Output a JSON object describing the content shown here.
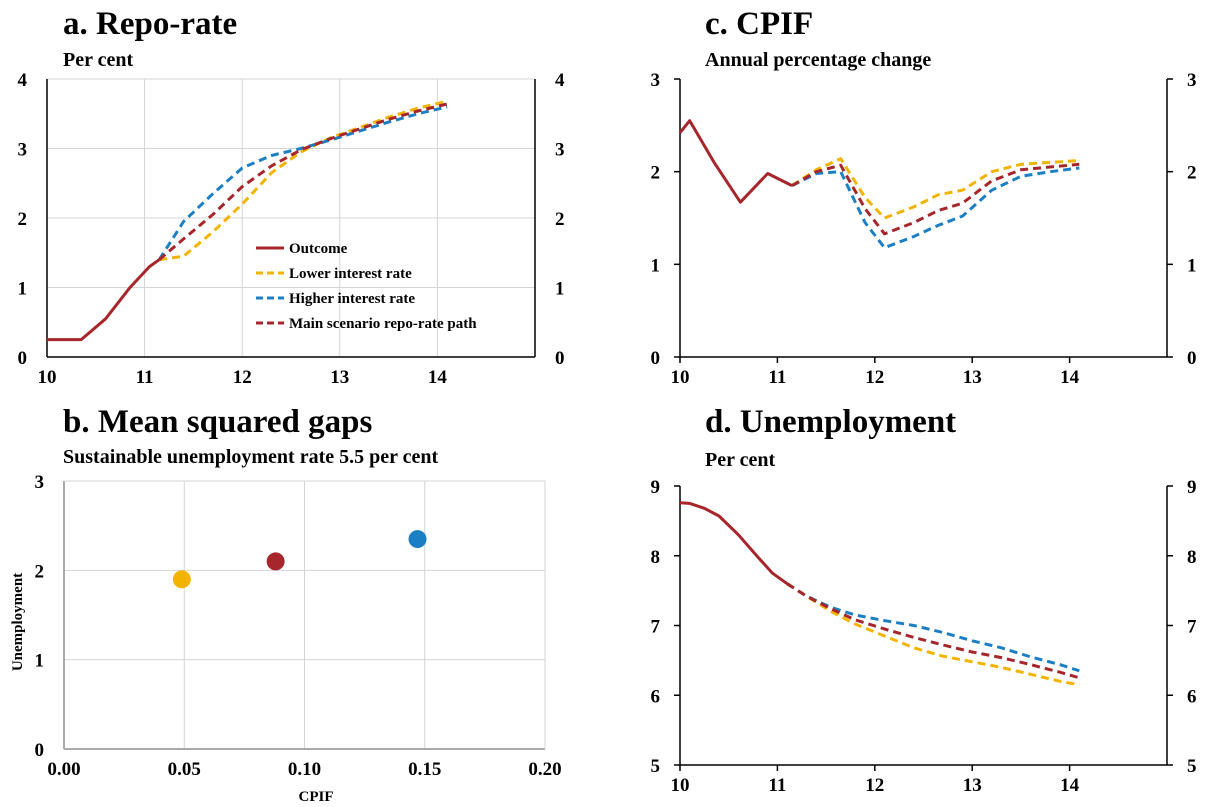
{
  "colors": {
    "outcome": "#a6262c",
    "lower": "#f2b400",
    "higher": "#1c7fc4",
    "main": "#a6262c",
    "grid": "#d4d4d4",
    "axis": "#000000"
  },
  "chart_data": [
    {
      "type": "line",
      "title": "a. Repo-rate",
      "subtitle": "Per cent",
      "xlim": [
        10,
        15
      ],
      "ylim": [
        0,
        4
      ],
      "xticks": [
        "10",
        "11",
        "12",
        "13",
        "14"
      ],
      "yticks": [
        "0",
        "1",
        "2",
        "3",
        "4"
      ],
      "grid": true,
      "series": [
        {
          "name": "Outcome",
          "key": "outcome",
          "dashed": false,
          "x": [
            10,
            10.35,
            10.6,
            10.85,
            11.05,
            11.15
          ],
          "y": [
            0.25,
            0.25,
            0.55,
            1.0,
            1.3,
            1.4
          ]
        },
        {
          "name": "Lower interest rate",
          "key": "lower",
          "dashed": true,
          "x": [
            11.15,
            11.4,
            11.7,
            12.0,
            12.3,
            12.6,
            12.9,
            13.2,
            13.5,
            13.8,
            14.1
          ],
          "y": [
            1.4,
            1.45,
            1.8,
            2.2,
            2.65,
            2.95,
            3.15,
            3.3,
            3.45,
            3.58,
            3.68
          ]
        },
        {
          "name": "Higher interest rate",
          "key": "higher",
          "dashed": true,
          "x": [
            11.15,
            11.4,
            11.7,
            12.0,
            12.3,
            12.6,
            12.9,
            13.2,
            13.5,
            13.8,
            14.1
          ],
          "y": [
            1.4,
            1.95,
            2.35,
            2.72,
            2.9,
            3.0,
            3.12,
            3.25,
            3.38,
            3.5,
            3.6
          ]
        },
        {
          "name": "Main scenario repo-rate path",
          "key": "main",
          "dashed": true,
          "x": [
            11.15,
            11.4,
            11.7,
            12.0,
            12.3,
            12.6,
            12.9,
            13.2,
            13.5,
            13.8,
            14.1
          ],
          "y": [
            1.4,
            1.7,
            2.05,
            2.45,
            2.75,
            2.98,
            3.14,
            3.28,
            3.42,
            3.54,
            3.64
          ]
        }
      ],
      "legend_placement": "center-right"
    },
    {
      "type": "scatter",
      "title": "b. Mean squared gaps",
      "subtitle": "Sustainable unemployment rate 5.5 per cent",
      "xlabel": "CPIF",
      "ylabel": "Unemployment",
      "xlim": [
        0,
        0.2
      ],
      "ylim": [
        0,
        3
      ],
      "xticks": [
        "0.00",
        "0.05",
        "0.10",
        "0.15",
        "0.20"
      ],
      "yticks": [
        "0",
        "1",
        "2",
        "3"
      ],
      "grid": true,
      "points": [
        {
          "x": 0.049,
          "y": 1.9,
          "key": "lower"
        },
        {
          "x": 0.088,
          "y": 2.1,
          "key": "main"
        },
        {
          "x": 0.147,
          "y": 2.35,
          "key": "higher"
        }
      ]
    },
    {
      "type": "line",
      "title": "c. CPIF",
      "subtitle": "Annual percentage change",
      "xlim": [
        10,
        15
      ],
      "ylim": [
        0,
        3
      ],
      "xticks": [
        "10",
        "11",
        "12",
        "13",
        "14"
      ],
      "yticks": [
        "0",
        "1",
        "2",
        "3"
      ],
      "grid": false,
      "series": [
        {
          "name": "Outcome",
          "key": "outcome",
          "dashed": false,
          "x": [
            10,
            10.1,
            10.35,
            10.62,
            10.9,
            11.15
          ],
          "y": [
            2.42,
            2.55,
            2.1,
            1.67,
            1.98,
            1.85
          ]
        },
        {
          "name": "Lower interest rate",
          "key": "lower",
          "dashed": true,
          "x": [
            11.15,
            11.4,
            11.65,
            11.9,
            12.1,
            12.4,
            12.65,
            12.9,
            13.2,
            13.5,
            13.8,
            14.1
          ],
          "y": [
            1.85,
            2.02,
            2.14,
            1.72,
            1.5,
            1.62,
            1.75,
            1.8,
            2.0,
            2.08,
            2.1,
            2.12
          ]
        },
        {
          "name": "Higher interest rate",
          "key": "higher",
          "dashed": true,
          "x": [
            11.15,
            11.4,
            11.65,
            11.9,
            12.1,
            12.4,
            12.65,
            12.9,
            13.2,
            13.5,
            13.8,
            14.1
          ],
          "y": [
            1.85,
            1.98,
            2.0,
            1.45,
            1.18,
            1.3,
            1.42,
            1.52,
            1.8,
            1.95,
            2.0,
            2.04
          ]
        },
        {
          "name": "Main scenario repo-rate path",
          "key": "main",
          "dashed": true,
          "x": [
            11.15,
            11.4,
            11.65,
            11.9,
            12.1,
            12.4,
            12.65,
            12.9,
            13.2,
            13.5,
            13.8,
            14.1
          ],
          "y": [
            1.85,
            2.0,
            2.07,
            1.6,
            1.33,
            1.45,
            1.58,
            1.66,
            1.9,
            2.02,
            2.05,
            2.08
          ]
        }
      ]
    },
    {
      "type": "line",
      "title": "d. Unemployment",
      "subtitle": "Per cent",
      "xlim": [
        10,
        15
      ],
      "ylim": [
        5,
        9
      ],
      "xticks": [
        "10",
        "11",
        "12",
        "13",
        "14"
      ],
      "yticks": [
        "5",
        "6",
        "7",
        "8",
        "9"
      ],
      "grid": false,
      "series": [
        {
          "name": "Outcome",
          "key": "outcome",
          "dashed": false,
          "x": [
            10,
            10.1,
            10.25,
            10.4,
            10.6,
            10.8,
            10.95,
            11.1
          ],
          "y": [
            8.76,
            8.75,
            8.68,
            8.57,
            8.3,
            7.98,
            7.75,
            7.6
          ]
        },
        {
          "name": "Lower interest rate",
          "key": "lower",
          "dashed": true,
          "x": [
            11.1,
            11.3,
            11.55,
            11.8,
            12.1,
            12.4,
            12.7,
            13.0,
            13.3,
            13.6,
            13.9,
            14.1
          ],
          "y": [
            7.6,
            7.42,
            7.2,
            7.02,
            6.85,
            6.68,
            6.56,
            6.48,
            6.4,
            6.3,
            6.2,
            6.15
          ]
        },
        {
          "name": "Higher interest rate",
          "key": "higher",
          "dashed": true,
          "x": [
            11.1,
            11.3,
            11.55,
            11.8,
            12.1,
            12.4,
            12.7,
            13.0,
            13.3,
            13.6,
            13.9,
            14.1
          ],
          "y": [
            7.6,
            7.42,
            7.26,
            7.15,
            7.07,
            7.0,
            6.9,
            6.78,
            6.68,
            6.55,
            6.44,
            6.35
          ]
        },
        {
          "name": "Main scenario repo-rate path",
          "key": "main",
          "dashed": true,
          "x": [
            11.1,
            11.3,
            11.55,
            11.8,
            12.1,
            12.4,
            12.7,
            13.0,
            13.3,
            13.6,
            13.9,
            14.1
          ],
          "y": [
            7.6,
            7.42,
            7.24,
            7.08,
            6.95,
            6.83,
            6.72,
            6.62,
            6.54,
            6.44,
            6.33,
            6.25
          ]
        }
      ]
    }
  ]
}
